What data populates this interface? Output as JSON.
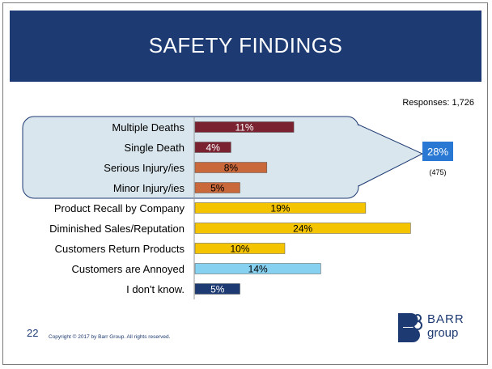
{
  "slide": {
    "title": "SAFETY FINDINGS",
    "responses": "Responses: 1,726",
    "page_number": "22",
    "copyright": "Copyright © 2017 by Barr Group.  All rights reserved.",
    "logo_line1": "BARR",
    "logo_line2": "group"
  },
  "callout": {
    "value": "28%",
    "count": "(475)"
  },
  "chart_data": {
    "type": "bar",
    "orientation": "horizontal",
    "categories": [
      "Multiple Deaths",
      "Single Death",
      "Serious Injury/ies",
      "Minor Injury/ies",
      "Product Recall by Company",
      "Diminished Sales/Reputation",
      "Customers Return Products",
      "Customers are Annoyed",
      "I don't know."
    ],
    "values": [
      11,
      4,
      8,
      5,
      19,
      24,
      10,
      14,
      5
    ],
    "labels": [
      "11%",
      "4%",
      "8%",
      "5%",
      "19%",
      "24%",
      "10%",
      "14%",
      "5%"
    ],
    "colors": [
      "#7a2230",
      "#7a2230",
      "#c9683a",
      "#c9683a",
      "#f5c400",
      "#f5c400",
      "#f5c400",
      "#86d0f0",
      "#1d3a72"
    ],
    "label_colors": [
      "#ffffff",
      "#ffffff",
      "#000000",
      "#000000",
      "#000000",
      "#000000",
      "#000000",
      "#000000",
      "#ffffff"
    ],
    "grouped_categories": [
      "Multiple Deaths",
      "Single Death",
      "Serious Injury/ies",
      "Minor Injury/ies"
    ],
    "grouped_total": 28,
    "title": "",
    "xlabel": "",
    "ylabel": "",
    "xlim": [
      0,
      28
    ]
  }
}
